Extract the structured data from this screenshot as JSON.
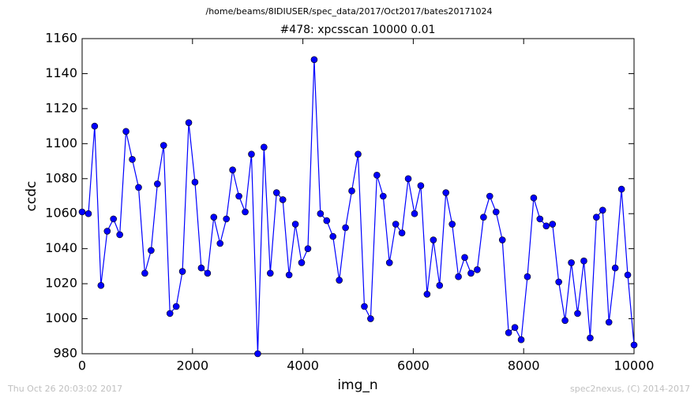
{
  "chart_data": {
    "type": "line",
    "suptitle": "/home/beams/8IDIUSER/spec_data/2017/Oct2017/bates20171024",
    "title": "#478: xpcsscan 10000 0.01",
    "xlabel": "img_n",
    "ylabel": "ccdc",
    "footer_left": "Thu Oct 26 20:03:02 2017",
    "footer_right": "spec2nexus, (C) 2014-2017",
    "x": [
      0,
      114,
      227,
      341,
      455,
      568,
      682,
      795,
      909,
      1023,
      1136,
      1250,
      1364,
      1477,
      1591,
      1705,
      1818,
      1932,
      2045,
      2159,
      2273,
      2386,
      2500,
      2614,
      2727,
      2841,
      2955,
      3068,
      3182,
      3295,
      3409,
      3523,
      3636,
      3750,
      3864,
      3977,
      4091,
      4205,
      4318,
      4432,
      4545,
      4659,
      4773,
      4886,
      5000,
      5114,
      5227,
      5341,
      5455,
      5568,
      5682,
      5795,
      5909,
      6023,
      6136,
      6250,
      6364,
      6477,
      6591,
      6705,
      6818,
      6932,
      7045,
      7159,
      7273,
      7386,
      7500,
      7614,
      7727,
      7841,
      7955,
      8068,
      8182,
      8295,
      8409,
      8523,
      8636,
      8750,
      8864,
      8977,
      9091,
      9205,
      9318,
      9432,
      9545,
      9659,
      9773,
      9886,
      10000
    ],
    "series": [
      {
        "color": "#0000ff",
        "values": [
          1061,
          1060,
          1110,
          1019,
          1050,
          1057,
          1048,
          1107,
          1091,
          1075,
          1026,
          1039,
          1077,
          1099,
          1003,
          1007,
          1027,
          1112,
          1078,
          1029,
          1026,
          1058,
          1043,
          1057,
          1085,
          1070,
          1061,
          1094,
          980,
          1098,
          1026,
          1072,
          1068,
          1025,
          1054,
          1032,
          1040,
          1148,
          1060,
          1056,
          1047,
          1022,
          1052,
          1073,
          1094,
          1007,
          1000,
          1082,
          1070,
          1032,
          1054,
          1049,
          1080,
          1060,
          1076,
          1014,
          1045,
          1019,
          1072,
          1054,
          1024,
          1035,
          1026,
          1028,
          1058,
          1070,
          1061,
          1045,
          992,
          995,
          988,
          1024,
          1069,
          1057,
          1053,
          1054,
          1021,
          999,
          1032,
          1003,
          1033,
          989,
          1058,
          1062,
          998,
          1029,
          1074,
          1025,
          985
        ]
      }
    ],
    "xlim": [
      0,
      10000
    ],
    "xticks": [
      0,
      2000,
      4000,
      6000,
      8000,
      10000
    ],
    "ylim": [
      980,
      1160
    ],
    "yticks": [
      980,
      1000,
      1020,
      1040,
      1060,
      1080,
      1100,
      1120,
      1140,
      1160
    ]
  }
}
